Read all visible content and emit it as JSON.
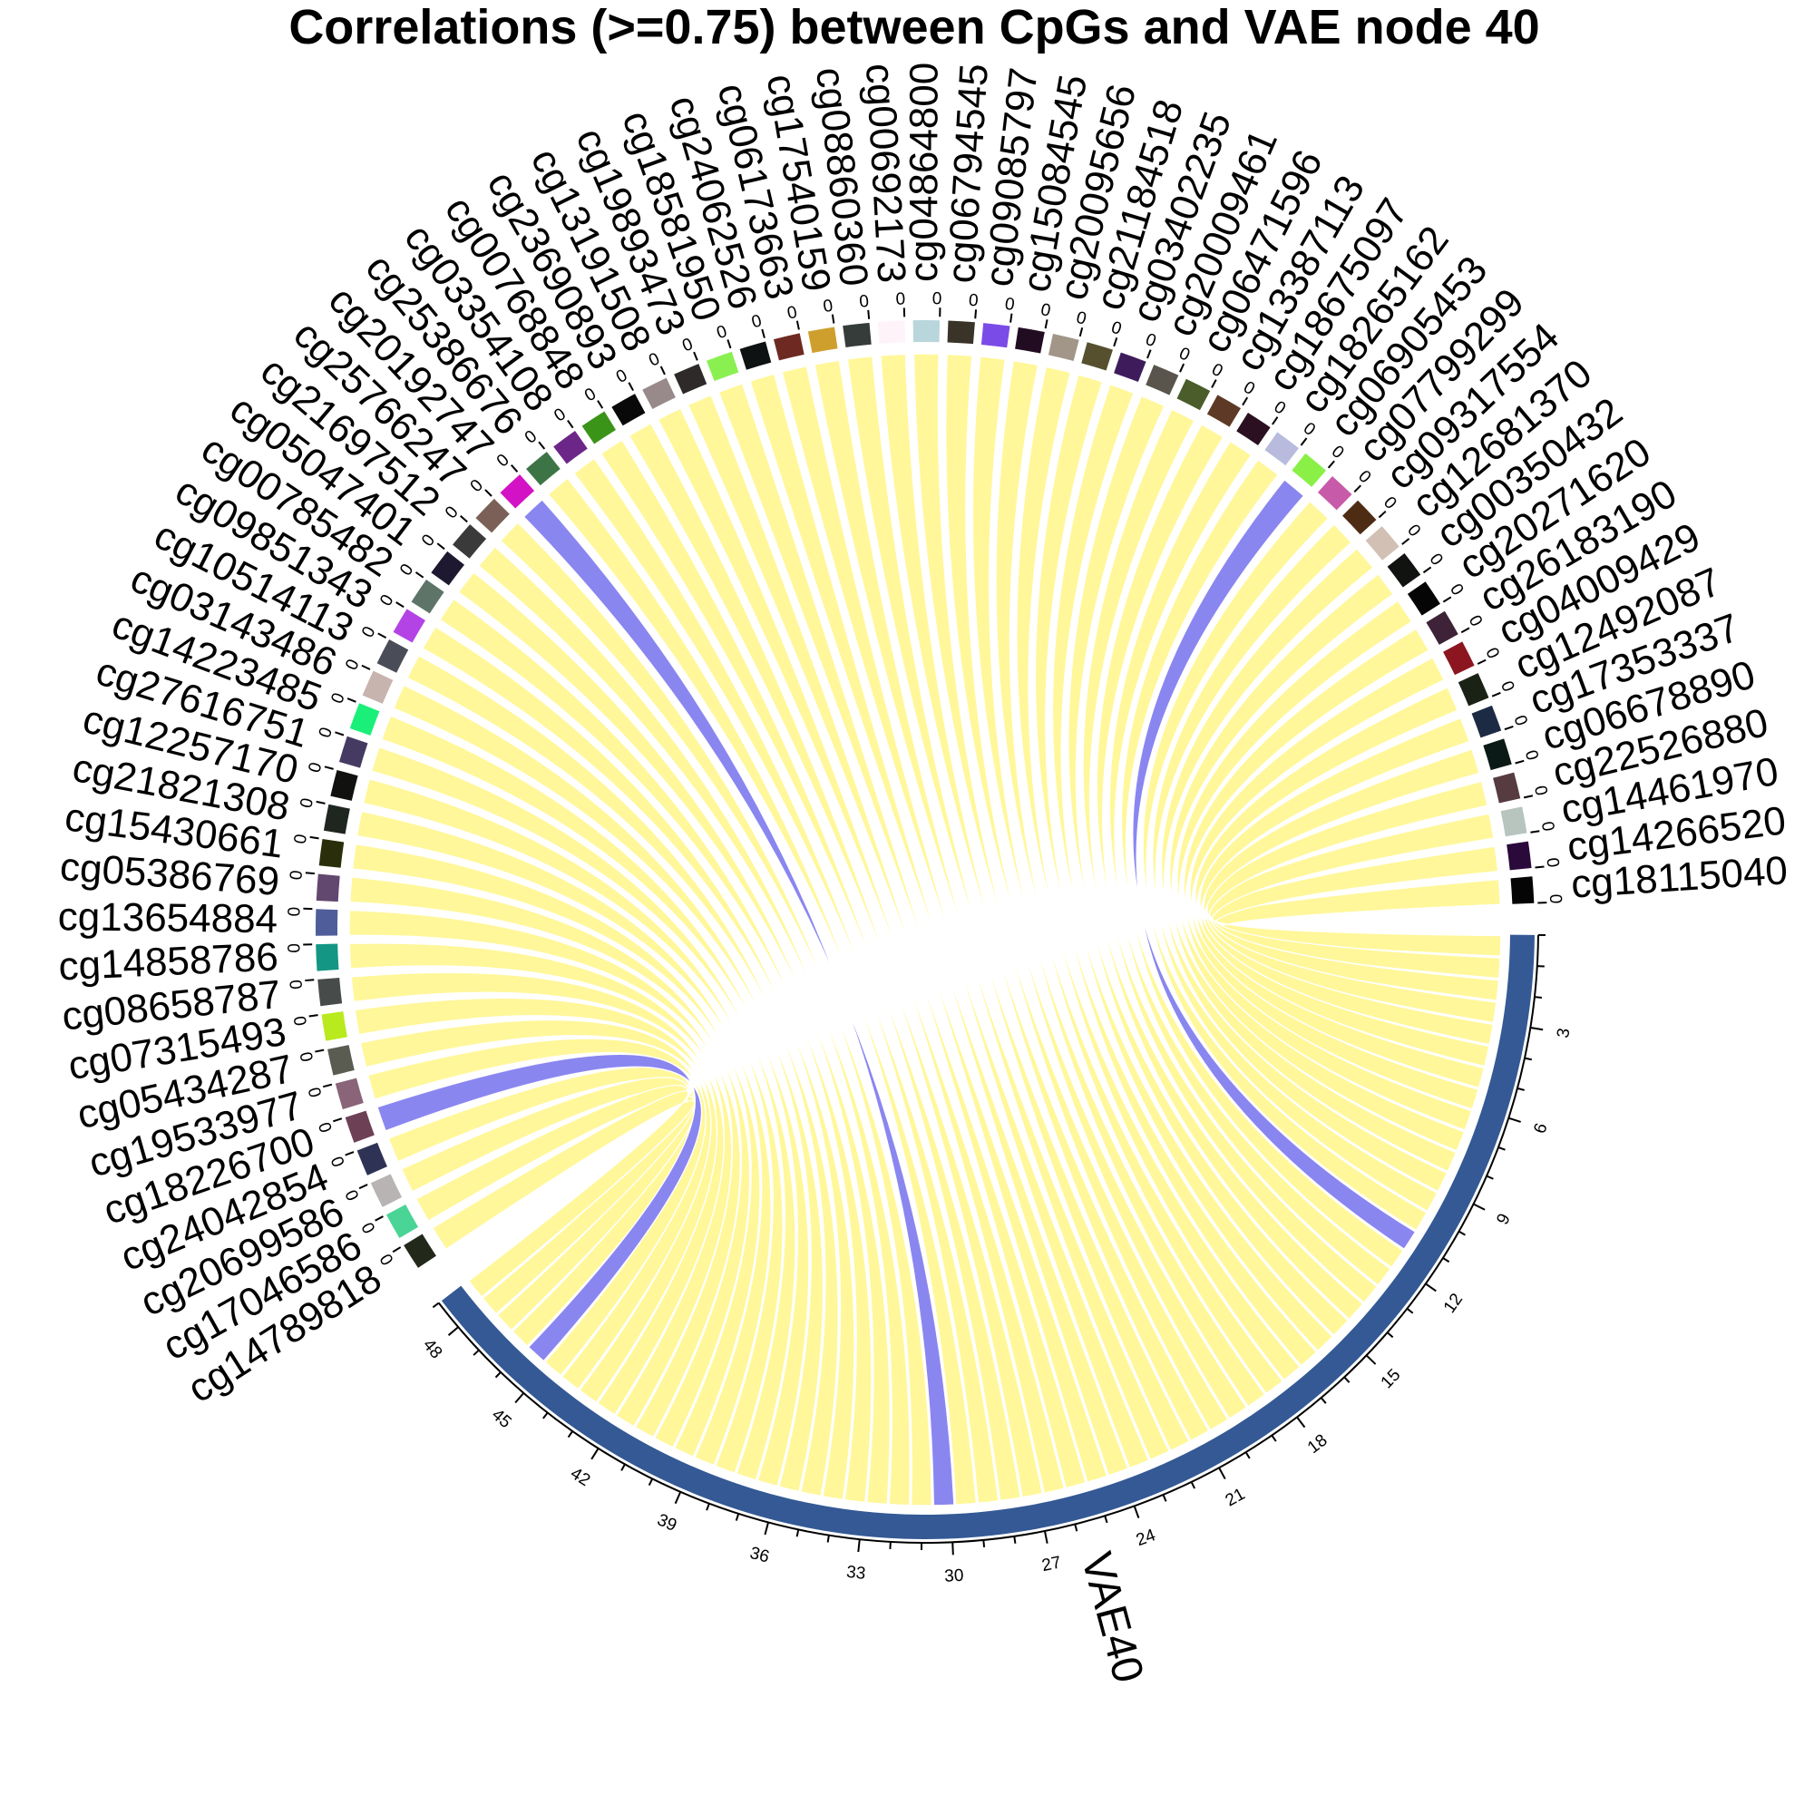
{
  "chart_data": {
    "type": "chord",
    "title": "Correlations (>=0.75) between CpGs and VAE node 40",
    "target": {
      "name": "VAE40",
      "color": "#345995",
      "ticks": [
        "3",
        "6",
        "9",
        "12",
        "15",
        "18",
        "21",
        "24",
        "27",
        "30",
        "33",
        "36",
        "39",
        "42",
        "45",
        "48"
      ],
      "range": [
        0,
        49
      ]
    },
    "cpg_tick_label": "0",
    "link_color": "#FFF799",
    "highlight_link_color": "#8A86F0",
    "cpgs": [
      {
        "name": "cg18115040",
        "color": "#050505",
        "highlight": false
      },
      {
        "name": "cg14266520",
        "color": "#2A0A3A",
        "highlight": false
      },
      {
        "name": "cg14461970",
        "color": "#B7C5BE",
        "highlight": false
      },
      {
        "name": "cg22526880",
        "color": "#563B40",
        "highlight": false
      },
      {
        "name": "cg06678890",
        "color": "#0B1A17",
        "highlight": false
      },
      {
        "name": "cg17353337",
        "color": "#1C2A44",
        "highlight": false
      },
      {
        "name": "cg12492087",
        "color": "#1A2215",
        "highlight": false
      },
      {
        "name": "cg04009429",
        "color": "#8B1620",
        "highlight": false
      },
      {
        "name": "cg26183190",
        "color": "#3D2238",
        "highlight": false
      },
      {
        "name": "cg20271620",
        "color": "#050505",
        "highlight": false
      },
      {
        "name": "cg00350432",
        "color": "#101310",
        "highlight": false
      },
      {
        "name": "cg12681370",
        "color": "#D2C0B4",
        "highlight": false
      },
      {
        "name": "cg09317554",
        "color": "#4E2C14",
        "highlight": false
      },
      {
        "name": "cg07799299",
        "color": "#C85BA9",
        "highlight": false
      },
      {
        "name": "cg06905453",
        "color": "#8AF046",
        "highlight": true
      },
      {
        "name": "cg18265162",
        "color": "#B8BBDD",
        "highlight": false
      },
      {
        "name": "cg18675097",
        "color": "#2A1020",
        "highlight": false
      },
      {
        "name": "cg13387113",
        "color": "#5E3A26",
        "highlight": false
      },
      {
        "name": "cg06471596",
        "color": "#4A5D2A",
        "highlight": false
      },
      {
        "name": "cg20009461",
        "color": "#59554C",
        "highlight": false
      },
      {
        "name": "cg03402235",
        "color": "#3E1C5C",
        "highlight": false
      },
      {
        "name": "cg21184518",
        "color": "#56502E",
        "highlight": false
      },
      {
        "name": "cg20095656",
        "color": "#A19688",
        "highlight": false
      },
      {
        "name": "cg15084545",
        "color": "#220C22",
        "highlight": false
      },
      {
        "name": "cg09085797",
        "color": "#7B4BE8",
        "highlight": false
      },
      {
        "name": "cg06794545",
        "color": "#3A3328",
        "highlight": false
      },
      {
        "name": "cg04864800",
        "color": "#B9D6DC",
        "highlight": false
      },
      {
        "name": "cg00692173",
        "color": "#FDF3F9",
        "highlight": false
      },
      {
        "name": "cg08860360",
        "color": "#363C3A",
        "highlight": false
      },
      {
        "name": "cg17540159",
        "color": "#CF9F2E",
        "highlight": false
      },
      {
        "name": "cg06173663",
        "color": "#6E2A22",
        "highlight": false
      },
      {
        "name": "cg24062526",
        "color": "#0F1212",
        "highlight": false
      },
      {
        "name": "cg18581950",
        "color": "#8AF052",
        "highlight": false
      },
      {
        "name": "cg19893473",
        "color": "#2E2A2A",
        "highlight": false
      },
      {
        "name": "cg13191508",
        "color": "#988A8A",
        "highlight": false
      },
      {
        "name": "cg23690893",
        "color": "#090909",
        "highlight": false
      },
      {
        "name": "cg00768848",
        "color": "#3A9418",
        "highlight": false
      },
      {
        "name": "cg03354108",
        "color": "#6C2688",
        "highlight": false
      },
      {
        "name": "cg25386676",
        "color": "#3C7446",
        "highlight": false
      },
      {
        "name": "cg20192747",
        "color": "#D212C4",
        "highlight": true
      },
      {
        "name": "cg25766247",
        "color": "#7A6056",
        "highlight": false
      },
      {
        "name": "cg21697512",
        "color": "#3A3A3A",
        "highlight": false
      },
      {
        "name": "cg05047401",
        "color": "#1E1830",
        "highlight": false
      },
      {
        "name": "cg00785482",
        "color": "#5E7468",
        "highlight": false
      },
      {
        "name": "cg09851343",
        "color": "#B443E6",
        "highlight": false
      },
      {
        "name": "cg10514113",
        "color": "#4A4C58",
        "highlight": false
      },
      {
        "name": "cg03143486",
        "color": "#C8B4AE",
        "highlight": false
      },
      {
        "name": "cg14223485",
        "color": "#1AF079",
        "highlight": false
      },
      {
        "name": "cg27616751",
        "color": "#453A62",
        "highlight": false
      },
      {
        "name": "cg12257170",
        "color": "#111210",
        "highlight": false
      },
      {
        "name": "cg21821308",
        "color": "#1F2620",
        "highlight": false
      },
      {
        "name": "cg15430661",
        "color": "#2A2E0A",
        "highlight": false
      },
      {
        "name": "cg05386769",
        "color": "#62476E",
        "highlight": false
      },
      {
        "name": "cg13654884",
        "color": "#4F5E9A",
        "highlight": false
      },
      {
        "name": "cg14858786",
        "color": "#139683",
        "highlight": false
      },
      {
        "name": "cg08658787",
        "color": "#474C4A",
        "highlight": false
      },
      {
        "name": "cg07315493",
        "color": "#B8EA1D",
        "highlight": false
      },
      {
        "name": "cg05434287",
        "color": "#5A5C52",
        "highlight": false
      },
      {
        "name": "cg19533977",
        "color": "#8A6478",
        "highlight": false
      },
      {
        "name": "cg18226700",
        "color": "#6E4056",
        "highlight": true
      },
      {
        "name": "cg24042854",
        "color": "#2E3356",
        "highlight": false
      },
      {
        "name": "cg20699586",
        "color": "#B7B4B3",
        "highlight": false
      },
      {
        "name": "cg17046586",
        "color": "#4AD496",
        "highlight": false
      },
      {
        "name": "cg14789818",
        "color": "#22281A",
        "highlight": false
      }
    ]
  }
}
